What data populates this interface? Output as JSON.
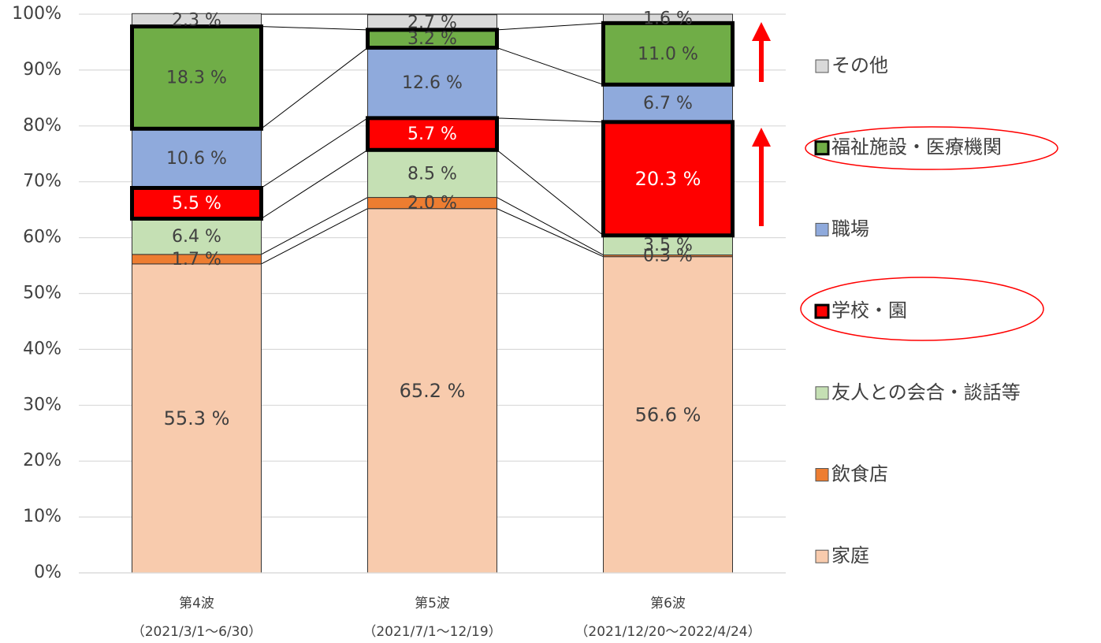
{
  "chart_data": {
    "type": "stacked_bar",
    "categories": [
      [
        "第4波",
        "（2021/3/1～6/30）"
      ],
      [
        "第5波",
        "（2021/7/1～12/19）"
      ],
      [
        "第6波",
        "（2021/12/20～2022/4/24）"
      ]
    ],
    "series": [
      {
        "name": "家庭",
        "color": "#f8cbad",
        "values": [
          55.3,
          65.2,
          56.6
        ],
        "value_labels": [
          "55.3 %",
          "65.2 %",
          "56.6 %"
        ]
      },
      {
        "name": "飲食店",
        "color": "#ed7d31",
        "values": [
          1.7,
          2.0,
          0.3
        ],
        "value_labels": [
          "1.7 %",
          "2.0 %",
          "0.3 %"
        ]
      },
      {
        "name": "友人との会合・談話等",
        "color": "#c5e0b4",
        "values": [
          6.4,
          8.5,
          3.5
        ],
        "value_labels": [
          "6.4 %",
          "8.5 %",
          "3.5 %"
        ]
      },
      {
        "name": "学校・園",
        "color": "#ff0000",
        "label_color": "#ffffff",
        "highlight": true,
        "values": [
          5.5,
          5.7,
          20.3
        ],
        "value_labels": [
          "5.5 %",
          "5.7 %",
          "20.3 %"
        ]
      },
      {
        "name": "職場",
        "color": "#8faadc",
        "values": [
          10.6,
          12.6,
          6.7
        ],
        "value_labels": [
          "10.6 %",
          "12.6 %",
          "6.7 %"
        ]
      },
      {
        "name": "福祉施設・医療機関",
        "color": "#70ad47",
        "highlight": true,
        "values": [
          18.3,
          3.2,
          11.0
        ],
        "value_labels": [
          "18.3 %",
          "3.2 %",
          "11.0 %"
        ]
      },
      {
        "name": "その他",
        "color": "#d9d9d9",
        "values": [
          2.3,
          2.7,
          1.6
        ],
        "value_labels": [
          "2.3 %",
          "2.7 %",
          "1.6 %"
        ]
      }
    ],
    "ylim": [
      0,
      100
    ],
    "yticks": [
      {
        "value": 0,
        "label": "0%"
      },
      {
        "value": 10,
        "label": "10%"
      },
      {
        "value": 20,
        "label": "20%"
      },
      {
        "value": 30,
        "label": "30%"
      },
      {
        "value": 40,
        "label": "40%"
      },
      {
        "value": 50,
        "label": "50%"
      },
      {
        "value": 60,
        "label": "60%"
      },
      {
        "value": 70,
        "label": "70%"
      },
      {
        "value": 80,
        "label": "80%"
      },
      {
        "value": 90,
        "label": "90%"
      },
      {
        "value": 100,
        "label": "100%"
      }
    ],
    "grid": true,
    "legend": "right"
  }
}
